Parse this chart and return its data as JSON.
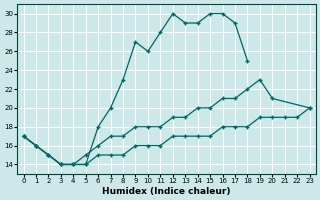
{
  "xlabel": "Humidex (Indice chaleur)",
  "bg_color": "#cce8e8",
  "grid_color": "#ffffff",
  "line_color": "#006666",
  "xlim": [
    -0.5,
    23.5
  ],
  "ylim": [
    13.0,
    31.0
  ],
  "xticks": [
    0,
    1,
    2,
    3,
    4,
    5,
    6,
    7,
    8,
    9,
    10,
    11,
    12,
    13,
    14,
    15,
    16,
    17,
    18,
    19,
    20,
    21,
    22,
    23
  ],
  "yticks": [
    14,
    16,
    18,
    20,
    22,
    24,
    26,
    28,
    30
  ],
  "seg1_x": [
    0,
    1,
    2,
    3,
    4,
    5,
    6,
    7,
    8,
    9,
    10,
    11,
    12,
    13,
    14,
    15,
    16,
    17,
    18
  ],
  "seg1_y": [
    17,
    16,
    15,
    14,
    14,
    14,
    18,
    20,
    23,
    27,
    26,
    28,
    30,
    29,
    29,
    30,
    30,
    29,
    25
  ],
  "seg2_x": [
    0,
    1,
    2,
    3,
    4,
    5,
    6,
    7,
    8,
    9,
    10,
    11,
    12,
    13,
    14,
    15,
    16,
    17,
    18,
    19,
    20,
    23
  ],
  "seg2_y": [
    17,
    16,
    15,
    14,
    14,
    15,
    16,
    17,
    17,
    18,
    18,
    18,
    19,
    19,
    20,
    20,
    21,
    21,
    22,
    23,
    21,
    20
  ],
  "seg3_x": [
    0,
    1,
    2,
    3,
    4,
    5,
    6,
    7,
    8,
    9,
    10,
    11,
    12,
    13,
    14,
    15,
    16,
    17,
    18,
    19,
    20,
    21,
    22,
    23
  ],
  "seg3_y": [
    17,
    16,
    15,
    14,
    14,
    14,
    15,
    15,
    15,
    16,
    16,
    16,
    17,
    17,
    17,
    17,
    18,
    18,
    18,
    19,
    19,
    19,
    19,
    20
  ]
}
